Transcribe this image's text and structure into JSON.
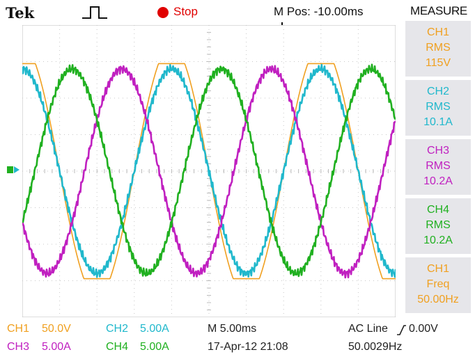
{
  "header": {
    "brand": "Tek",
    "status": "Stop",
    "mpos": "M Pos: -10.00ms"
  },
  "measure": {
    "title": "MEASURE",
    "items": [
      {
        "ch": "CH1",
        "type": "RMS",
        "value": "115V",
        "color": "#f0a020"
      },
      {
        "ch": "CH2",
        "type": "RMS",
        "value": "10.1A",
        "color": "#20b8cc"
      },
      {
        "ch": "CH3",
        "type": "RMS",
        "value": "10.2A",
        "color": "#c020c0"
      },
      {
        "ch": "CH4",
        "type": "RMS",
        "value": "10.2A",
        "color": "#20b020"
      },
      {
        "ch": "CH1",
        "type": "Freq",
        "value": "50.00Hz",
        "color": "#f0a020"
      }
    ]
  },
  "footer": {
    "ch1_label": "CH1",
    "ch1_scale": "50.0V",
    "ch2_label": "CH2",
    "ch2_scale": "5.00A",
    "ch3_label": "CH3",
    "ch3_scale": "5.00A",
    "ch4_label": "CH4",
    "ch4_scale": "5.00A",
    "timebase": "M 5.00ms",
    "date": "17-Apr-12 21:08",
    "trigger": "AC Line",
    "trigger_level": "0.00V",
    "trigger_freq": "50.0029Hz"
  },
  "colors": {
    "ch1": "#f0a020",
    "ch2": "#20b8cc",
    "ch3": "#c020c0",
    "ch4": "#20b020"
  },
  "waveforms": {
    "period_ms": 20,
    "screen_ms": 50,
    "channels": [
      {
        "name": "CH1",
        "amplitude_div": 3.2,
        "phase_deg": 90
      },
      {
        "name": "CH2",
        "amplitude_div": 2.8,
        "phase_deg": 90
      },
      {
        "name": "CH3",
        "amplitude_div": 2.8,
        "phase_deg": 210
      },
      {
        "name": "CH4",
        "amplitude_div": 2.8,
        "phase_deg": 330
      }
    ]
  }
}
